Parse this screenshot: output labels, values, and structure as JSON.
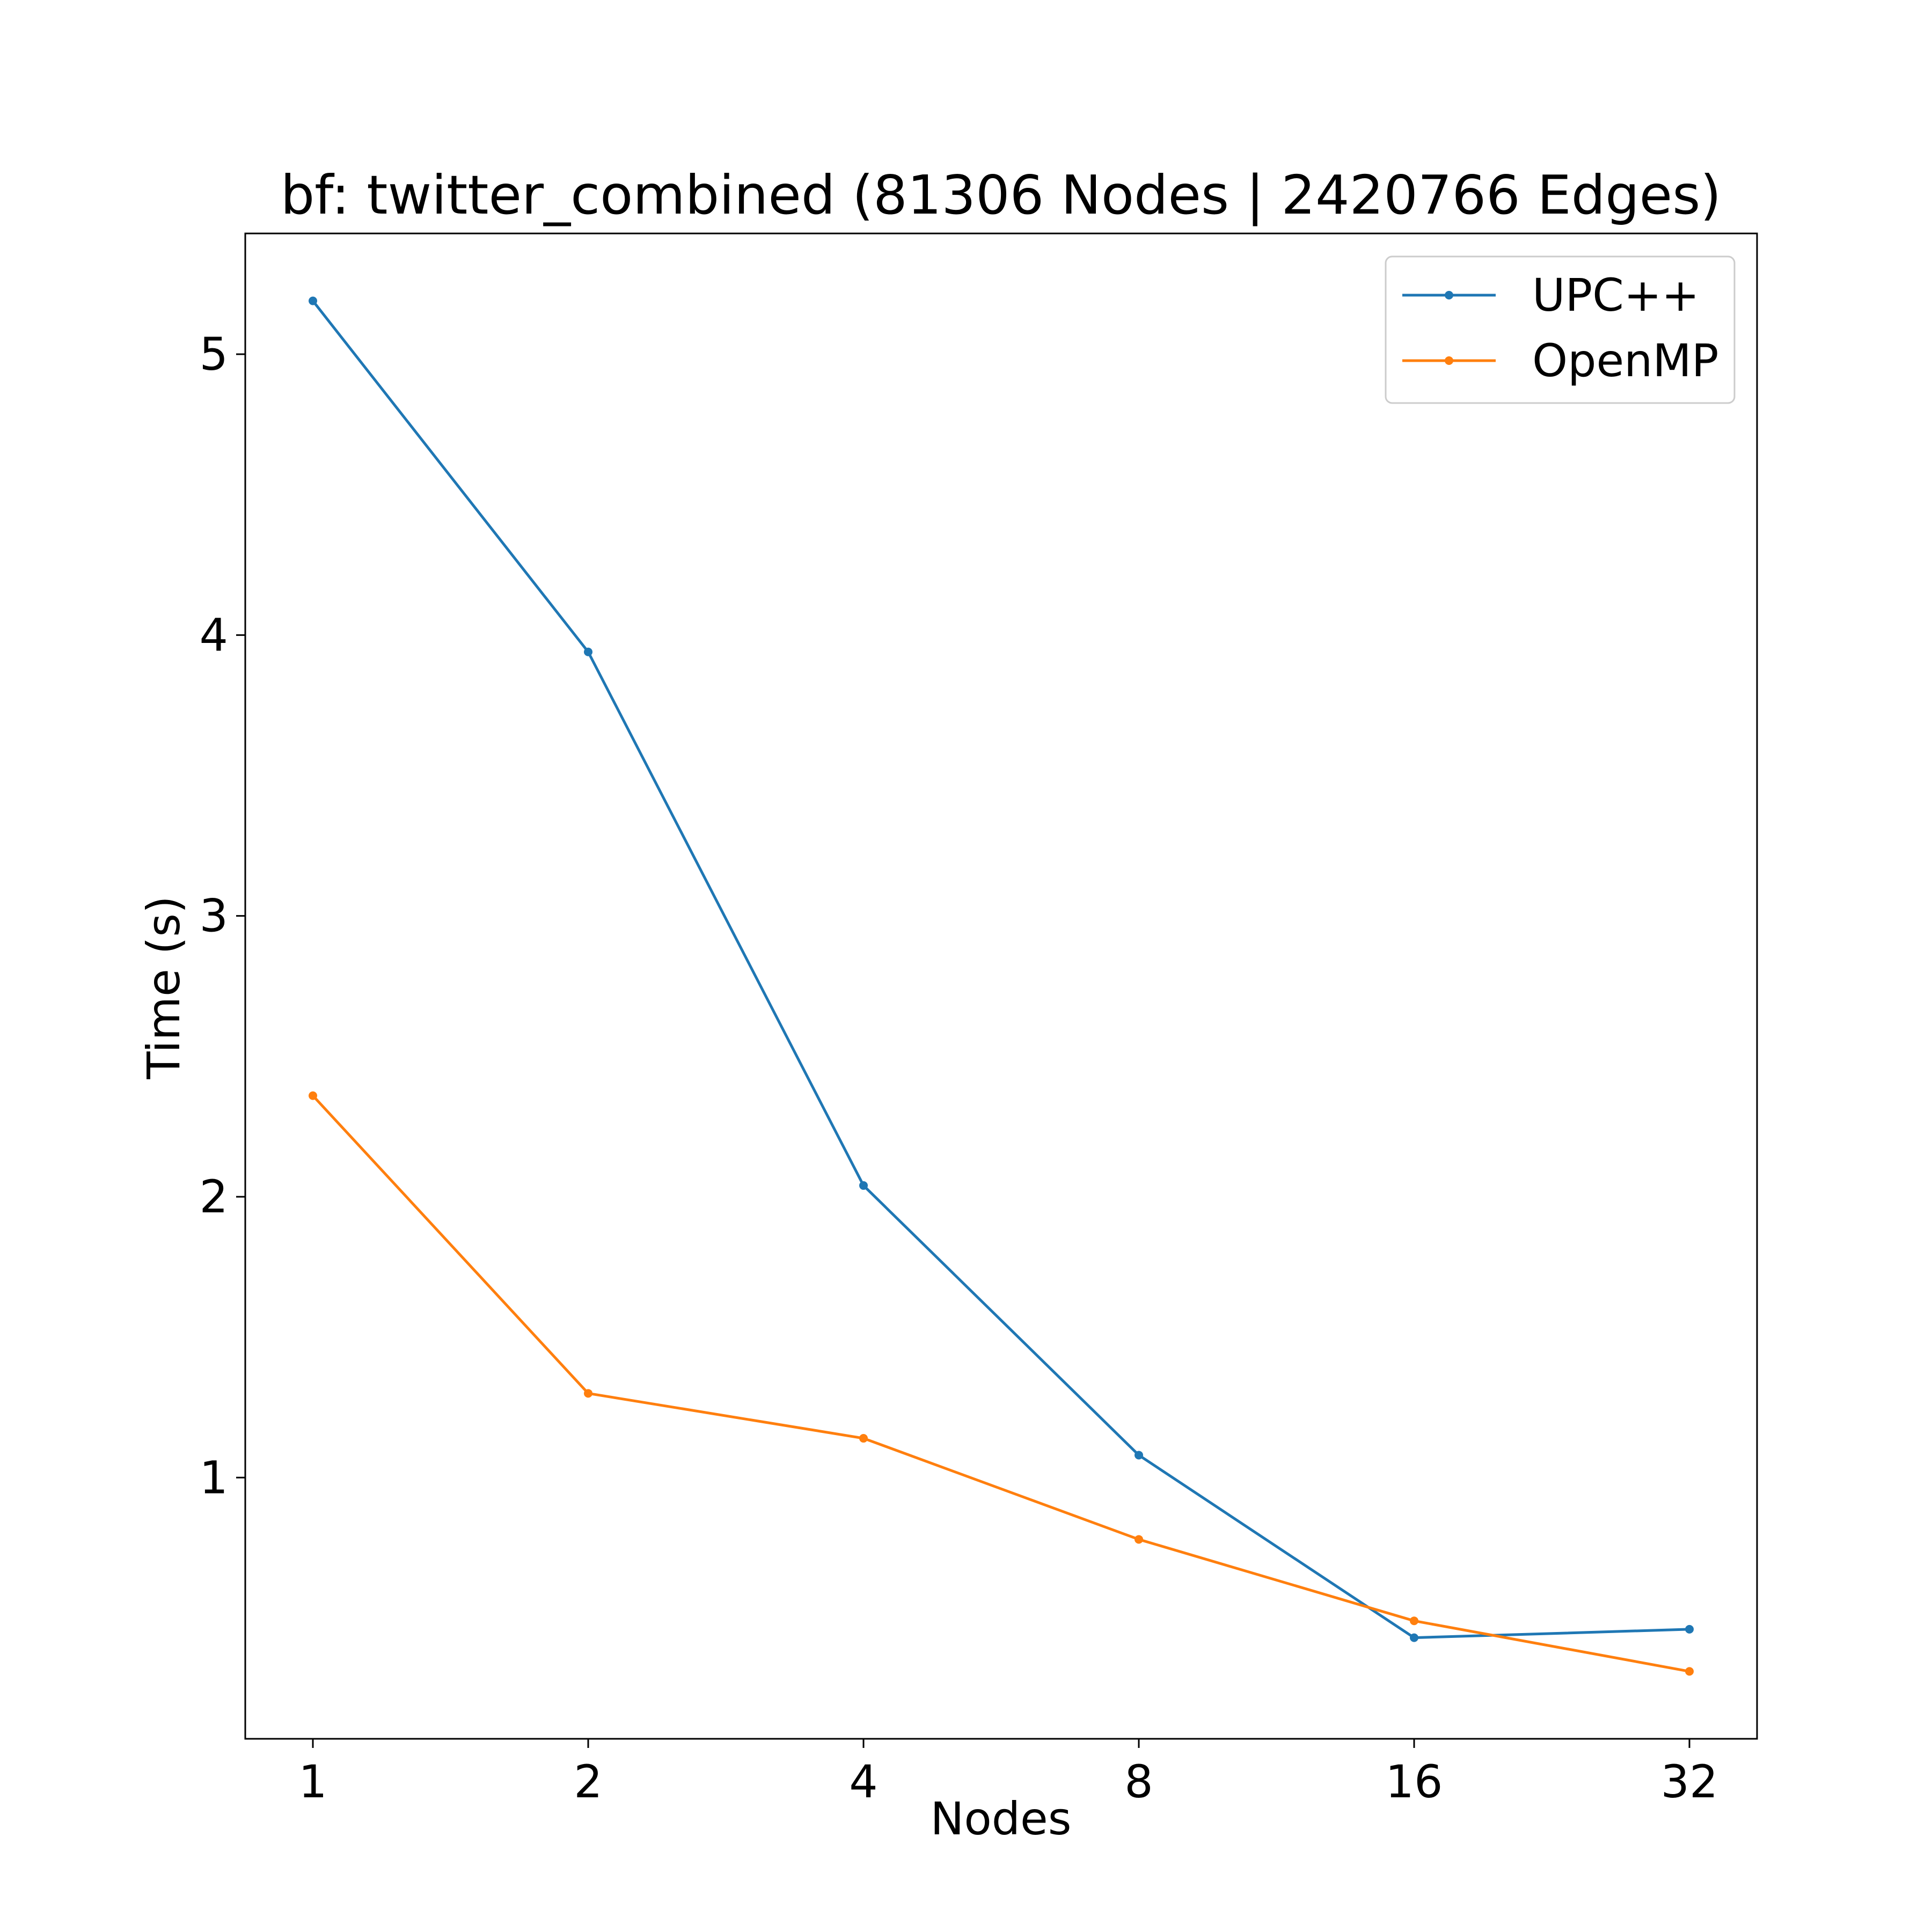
{
  "chart_data": {
    "type": "line",
    "title": "bf: twitter_combined (81306 Nodes | 2420766 Edges)",
    "xlabel": "Nodes",
    "ylabel": "Time (s)",
    "x_scale": "log2",
    "x": [
      1,
      2,
      4,
      8,
      16,
      32
    ],
    "x_tick_labels": [
      "1",
      "2",
      "4",
      "8",
      "16",
      "32"
    ],
    "y_ticks": [
      1,
      2,
      3,
      4,
      5
    ],
    "y_tick_labels": [
      "1",
      "2",
      "3",
      "4",
      "5"
    ],
    "ylim": [
      0.07,
      5.43
    ],
    "grid": false,
    "legend_position": "top-right",
    "series": [
      {
        "name": "UPC++",
        "color": "#1f77b4",
        "values": [
          5.19,
          3.94,
          2.04,
          1.08,
          0.43,
          0.46
        ]
      },
      {
        "name": "OpenMP",
        "color": "#ff7f0e",
        "values": [
          2.36,
          1.3,
          1.14,
          0.78,
          0.49,
          0.31
        ]
      }
    ]
  }
}
